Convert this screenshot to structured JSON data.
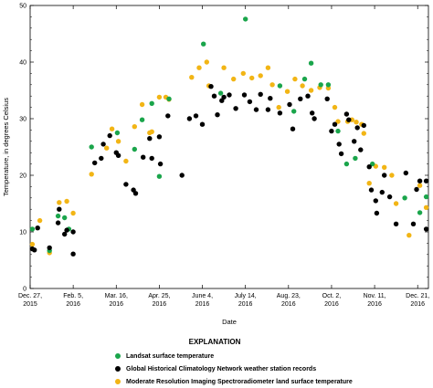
{
  "chart_data": {
    "type": "scatter",
    "xlabel": "Date",
    "ylabel": "Temperature, in degrees Celsius",
    "x_axis_type": "date",
    "xlim": [
      "2015-12-27",
      "2016-12-31"
    ],
    "ylim": [
      0,
      50
    ],
    "y_ticks": [
      0,
      10,
      20,
      30,
      40,
      50
    ],
    "x_ticks": [
      {
        "date": "2015-12-27",
        "label": [
          "Dec. 27,",
          "2015"
        ]
      },
      {
        "date": "2016-02-05",
        "label": [
          "Feb. 5,",
          "2016"
        ]
      },
      {
        "date": "2016-03-16",
        "label": [
          "Mar. 16,",
          "2016"
        ]
      },
      {
        "date": "2016-04-25",
        "label": [
          "Apr. 25,",
          "2016"
        ]
      },
      {
        "date": "2016-06-04",
        "label": [
          "June 4,",
          "2016"
        ]
      },
      {
        "date": "2016-07-14",
        "label": [
          "July 14,",
          "2016"
        ]
      },
      {
        "date": "2016-08-23",
        "label": [
          "Aug. 23,",
          "2016"
        ]
      },
      {
        "date": "2016-10-02",
        "label": [
          "Oct. 2,",
          "2016"
        ]
      },
      {
        "date": "2016-11-11",
        "label": [
          "Nov. 11,",
          "2016"
        ]
      },
      {
        "date": "2016-12-21",
        "label": [
          "Dec. 21,",
          "2016"
        ]
      }
    ],
    "grid": false,
    "legend_position": "bottom",
    "legend_title": "EXPLANATION",
    "series": [
      {
        "name": "Landsat surface temperature",
        "color": "#1aa54b",
        "points": [
          [
            "2015-12-29",
            10.5
          ],
          [
            "2016-01-14",
            6.7
          ],
          [
            "2016-01-22",
            12.8
          ],
          [
            "2016-01-28",
            12.5
          ],
          [
            "2016-02-01",
            10.5
          ],
          [
            "2016-02-22",
            25.0
          ],
          [
            "2016-03-17",
            27.5
          ],
          [
            "2016-04-02",
            24.6
          ],
          [
            "2016-04-09",
            29.8
          ],
          [
            "2016-04-18",
            32.7
          ],
          [
            "2016-04-25",
            19.8
          ],
          [
            "2016-05-04",
            33.5
          ],
          [
            "2016-06-05",
            43.2
          ],
          [
            "2016-06-21",
            34.5
          ],
          [
            "2016-07-14",
            47.6
          ],
          [
            "2016-08-15",
            35.8
          ],
          [
            "2016-08-28",
            31.3
          ],
          [
            "2016-09-07",
            37.0
          ],
          [
            "2016-09-13",
            39.8
          ],
          [
            "2016-09-22",
            36.0
          ],
          [
            "2016-09-29",
            36.0
          ],
          [
            "2016-10-08",
            27.8
          ],
          [
            "2016-10-16",
            22.0
          ],
          [
            "2016-10-24",
            23.0
          ],
          [
            "2016-11-09",
            22.0
          ],
          [
            "2016-12-09",
            16.0
          ],
          [
            "2016-12-23",
            13.4
          ],
          [
            "2016-12-29",
            16.2
          ]
        ]
      },
      {
        "name": "Global Historical Climatology Network weather station records",
        "color": "#000000",
        "points": [
          [
            "2015-12-29",
            7.0
          ],
          [
            "2015-12-31",
            6.8
          ],
          [
            "2016-01-03",
            10.7
          ],
          [
            "2016-01-14",
            7.2
          ],
          [
            "2016-01-22",
            11.6
          ],
          [
            "2016-01-23",
            14.0
          ],
          [
            "2016-01-28",
            9.6
          ],
          [
            "2016-01-30",
            10.3
          ],
          [
            "2016-02-05",
            6.1
          ],
          [
            "2016-02-05",
            10.0
          ],
          [
            "2016-02-25",
            22.2
          ],
          [
            "2016-03-02",
            23.0
          ],
          [
            "2016-03-04",
            25.5
          ],
          [
            "2016-03-10",
            27.0
          ],
          [
            "2016-03-16",
            24.0
          ],
          [
            "2016-03-18",
            23.5
          ],
          [
            "2016-03-25",
            18.4
          ],
          [
            "2016-04-01",
            17.4
          ],
          [
            "2016-04-03",
            16.8
          ],
          [
            "2016-04-10",
            23.2
          ],
          [
            "2016-04-16",
            26.5
          ],
          [
            "2016-04-18",
            23.0
          ],
          [
            "2016-04-25",
            26.8
          ],
          [
            "2016-04-26",
            22.0
          ],
          [
            "2016-05-03",
            30.5
          ],
          [
            "2016-05-16",
            20.0
          ],
          [
            "2016-05-23",
            30.0
          ],
          [
            "2016-05-29",
            30.5
          ],
          [
            "2016-06-04",
            29.0
          ],
          [
            "2016-06-12",
            35.7
          ],
          [
            "2016-06-15",
            34.0
          ],
          [
            "2016-06-18",
            30.7
          ],
          [
            "2016-06-22",
            33.2
          ],
          [
            "2016-06-24",
            33.8
          ],
          [
            "2016-06-29",
            34.2
          ],
          [
            "2016-07-05",
            31.8
          ],
          [
            "2016-07-13",
            34.2
          ],
          [
            "2016-07-18",
            33.0
          ],
          [
            "2016-07-24",
            31.6
          ],
          [
            "2016-07-28",
            34.3
          ],
          [
            "2016-08-04",
            31.6
          ],
          [
            "2016-08-06",
            33.6
          ],
          [
            "2016-08-15",
            31.0
          ],
          [
            "2016-08-24",
            32.5
          ],
          [
            "2016-08-27",
            28.2
          ],
          [
            "2016-09-03",
            33.5
          ],
          [
            "2016-09-10",
            34.0
          ],
          [
            "2016-09-14",
            31.0
          ],
          [
            "2016-09-16",
            30.0
          ],
          [
            "2016-09-28",
            33.5
          ],
          [
            "2016-10-02",
            27.8
          ],
          [
            "2016-10-05",
            29.0
          ],
          [
            "2016-10-09",
            25.5
          ],
          [
            "2016-10-11",
            23.8
          ],
          [
            "2016-10-16",
            30.8
          ],
          [
            "2016-10-18",
            29.8
          ],
          [
            "2016-10-23",
            26.0
          ],
          [
            "2016-10-26",
            28.4
          ],
          [
            "2016-10-29",
            24.5
          ],
          [
            "2016-11-01",
            28.8
          ],
          [
            "2016-11-06",
            21.5
          ],
          [
            "2016-11-08",
            17.4
          ],
          [
            "2016-11-12",
            15.5
          ],
          [
            "2016-11-13",
            13.3
          ],
          [
            "2016-11-18",
            17.0
          ],
          [
            "2016-11-20",
            20.0
          ],
          [
            "2016-11-25",
            16.2
          ],
          [
            "2016-12-01",
            11.4
          ],
          [
            "2016-12-10",
            20.4
          ],
          [
            "2016-12-17",
            11.4
          ],
          [
            "2016-12-20",
            17.5
          ],
          [
            "2016-12-23",
            19.0
          ],
          [
            "2016-12-29",
            10.5
          ],
          [
            "2016-12-29",
            19.0
          ]
        ]
      },
      {
        "name": "Moderate Resolution Imaging Spectroradiometer land surface temperature",
        "color": "#f2b515",
        "points": [
          [
            "2015-12-29",
            7.8
          ],
          [
            "2016-01-05",
            12.0
          ],
          [
            "2016-01-14",
            6.3
          ],
          [
            "2016-01-23",
            15.2
          ],
          [
            "2016-01-30",
            15.4
          ],
          [
            "2016-02-05",
            13.3
          ],
          [
            "2016-02-22",
            20.2
          ],
          [
            "2016-03-07",
            24.8
          ],
          [
            "2016-03-12",
            28.2
          ],
          [
            "2016-03-18",
            26.0
          ],
          [
            "2016-03-25",
            22.5
          ],
          [
            "2016-04-02",
            28.6
          ],
          [
            "2016-04-09",
            32.5
          ],
          [
            "2016-04-16",
            27.5
          ],
          [
            "2016-04-18",
            27.7
          ],
          [
            "2016-04-25",
            33.8
          ],
          [
            "2016-05-01",
            33.8
          ],
          [
            "2016-05-04",
            33.4
          ],
          [
            "2016-05-25",
            37.3
          ],
          [
            "2016-06-01",
            39.0
          ],
          [
            "2016-06-08",
            40.0
          ],
          [
            "2016-06-10",
            35.8
          ],
          [
            "2016-06-24",
            39.0
          ],
          [
            "2016-07-03",
            37.0
          ],
          [
            "2016-07-12",
            38.0
          ],
          [
            "2016-07-20",
            37.2
          ],
          [
            "2016-07-28",
            37.6
          ],
          [
            "2016-08-04",
            39.0
          ],
          [
            "2016-08-08",
            36.0
          ],
          [
            "2016-08-14",
            32.0
          ],
          [
            "2016-08-22",
            34.8
          ],
          [
            "2016-08-29",
            37.0
          ],
          [
            "2016-09-05",
            35.8
          ],
          [
            "2016-09-13",
            35.0
          ],
          [
            "2016-09-21",
            35.5
          ],
          [
            "2016-09-29",
            35.4
          ],
          [
            "2016-10-05",
            32.0
          ],
          [
            "2016-10-08",
            29.5
          ],
          [
            "2016-10-17",
            29.5
          ],
          [
            "2016-10-21",
            29.8
          ],
          [
            "2016-10-25",
            29.4
          ],
          [
            "2016-10-30",
            29.0
          ],
          [
            "2016-11-01",
            27.4
          ],
          [
            "2016-11-06",
            18.6
          ],
          [
            "2016-11-12",
            21.6
          ],
          [
            "2016-11-20",
            21.4
          ],
          [
            "2016-11-27",
            20.0
          ],
          [
            "2016-12-01",
            15.0
          ],
          [
            "2016-12-13",
            9.4
          ],
          [
            "2016-12-23",
            18.2
          ],
          [
            "2016-12-29",
            14.3
          ]
        ]
      }
    ]
  }
}
